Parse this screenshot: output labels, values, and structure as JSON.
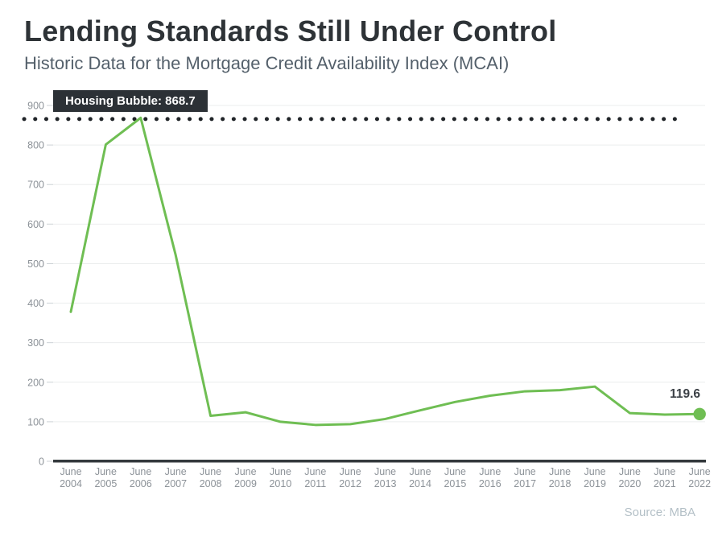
{
  "header": {
    "title": "Lending Standards Still Under Control",
    "subtitle": "Historic Data for the Mortgage Credit Availability Index (MCAI)"
  },
  "annotation": {
    "label": "Housing Bubble: 868.7",
    "value": 868.7
  },
  "end_label": "119.6",
  "footer": {
    "source": "Source: MBA"
  },
  "colors": {
    "line": "#6fbe53",
    "title_text": "#2e3337",
    "subtitle_text": "#54606b",
    "axis_labels": "#8c9298",
    "tick": "#ccd1d5",
    "gridline": "#ebedee",
    "axis_line": "#34393d",
    "dotted_line": "#212529",
    "annotation_bg": "#2c3136",
    "annotation_text": "#ffffff",
    "value_label": "#3b4046",
    "source_text": "#b4c0c7"
  },
  "chart_data": {
    "type": "line",
    "title": "Lending Standards Still Under Control",
    "subtitle": "Historic Data for the Mortgage Credit Availability Index (MCAI)",
    "categories": [
      "June 2004",
      "June 2005",
      "June 2006",
      "June 2007",
      "June 2008",
      "June 2009",
      "June 2010",
      "June 2011",
      "June 2012",
      "June 2013",
      "June 2014",
      "June 2015",
      "June 2016",
      "June 2017",
      "June 2018",
      "June 2019",
      "June 2020",
      "June 2021",
      "June 2022"
    ],
    "values": [
      378,
      801,
      868.7,
      522,
      115,
      124,
      100,
      92,
      94,
      107,
      129,
      150,
      166,
      177,
      180,
      189,
      122,
      118,
      119.6
    ],
    "ylim": [
      0,
      900
    ],
    "yticks": [
      0,
      100,
      200,
      300,
      400,
      500,
      600,
      700,
      800,
      900
    ],
    "grid": true,
    "legend": "none",
    "threshold": {
      "label": "Housing Bubble: 868.7",
      "value": 868.7
    },
    "end_point_label": "119.6",
    "series_color": "#6fbe53",
    "source": "Source: MBA"
  }
}
